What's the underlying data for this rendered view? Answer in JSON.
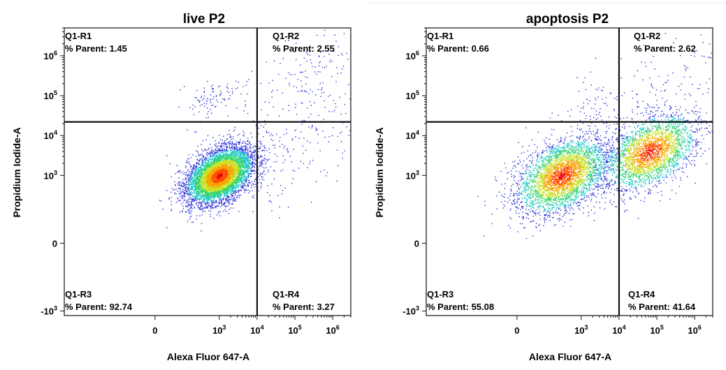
{
  "chart_data": [
    {
      "type": "scatter",
      "title": "live P2",
      "xlabel": "Alexa Fluor 647-A",
      "ylabel": "Propidium Iodide-A",
      "x_scale": "biexponential",
      "y_scale": "biexponential",
      "xlim": [
        -5000,
        3000000
      ],
      "ylim": [
        -1300,
        5000000
      ],
      "x_ticks": [
        {
          "value": 0,
          "label": "0"
        },
        {
          "value": 1000,
          "label": "10",
          "exp": "3"
        },
        {
          "value": 10000,
          "label": "10",
          "exp": "4"
        },
        {
          "value": 100000,
          "label": "10",
          "exp": "5"
        },
        {
          "value": 1000000,
          "label": "10",
          "exp": "6"
        }
      ],
      "y_ticks": [
        {
          "value": -1000,
          "label": "-10",
          "exp": "3"
        },
        {
          "value": 0,
          "label": "0"
        },
        {
          "value": 1000,
          "label": "10",
          "exp": "3"
        },
        {
          "value": 10000,
          "label": "10",
          "exp": "4"
        },
        {
          "value": 100000,
          "label": "10",
          "exp": "5"
        },
        {
          "value": 1000000,
          "label": "10",
          "exp": "6"
        }
      ],
      "gate": {
        "x": 10000,
        "y": 22000
      },
      "quadrants": [
        {
          "name": "Q1-R1",
          "stat": "% Parent: 1.45",
          "position": "top-left"
        },
        {
          "name": "Q1-R2",
          "stat": "% Parent: 2.55",
          "position": "top-right"
        },
        {
          "name": "Q1-R3",
          "stat": "% Parent: 92.74",
          "position": "bottom-left"
        },
        {
          "name": "Q1-R4",
          "stat": "% Parent: 3.27",
          "position": "bottom-right"
        }
      ],
      "populations": [
        {
          "x": 1000,
          "y": 1000,
          "spread": 0.16,
          "weight": 0.9274,
          "dense": true
        },
        {
          "x": 900,
          "y": 95000,
          "spread": 0.12,
          "weight": 0.0145
        },
        {
          "x": 50000,
          "y": 5000,
          "spread": 0.38,
          "weight": 0.0327
        },
        {
          "x": 300000,
          "y": 300000,
          "spread": 0.3,
          "weight": 0.0255
        }
      ]
    },
    {
      "type": "scatter",
      "title": "apoptosis P2",
      "xlabel": "Alexa Fluor 647-A",
      "ylabel": "Propidium Iodide-A",
      "x_scale": "biexponential",
      "y_scale": "biexponential",
      "xlim": [
        -5000,
        3000000
      ],
      "ylim": [
        -1300,
        5000000
      ],
      "x_ticks": [
        {
          "value": 0,
          "label": "0"
        },
        {
          "value": 1000,
          "label": "10",
          "exp": "3"
        },
        {
          "value": 10000,
          "label": "10",
          "exp": "4"
        },
        {
          "value": 100000,
          "label": "10",
          "exp": "5"
        },
        {
          "value": 1000000,
          "label": "10",
          "exp": "6"
        }
      ],
      "y_ticks": [
        {
          "value": -1000,
          "label": "-10",
          "exp": "3"
        },
        {
          "value": 0,
          "label": "0"
        },
        {
          "value": 1000,
          "label": "10",
          "exp": "3"
        },
        {
          "value": 10000,
          "label": "10",
          "exp": "4"
        },
        {
          "value": 100000,
          "label": "10",
          "exp": "5"
        },
        {
          "value": 1000000,
          "label": "10",
          "exp": "6"
        }
      ],
      "gate": {
        "x": 10000,
        "y": 22000
      },
      "quadrants": [
        {
          "name": "Q1-R1",
          "stat": "% Parent: 0.66",
          "position": "top-left"
        },
        {
          "name": "Q1-R2",
          "stat": "% Parent: 2.62",
          "position": "top-right"
        },
        {
          "name": "Q1-R3",
          "stat": "% Parent: 55.08",
          "position": "bottom-left"
        },
        {
          "name": "Q1-R4",
          "stat": "% Parent: 41.64",
          "position": "bottom-right"
        }
      ],
      "populations": [
        {
          "x": 700,
          "y": 1000,
          "spread": 0.22,
          "weight": 0.5508,
          "dense": true
        },
        {
          "x": 65000,
          "y": 4000,
          "spread": 0.22,
          "weight": 0.4164,
          "dense": true
        },
        {
          "x": 2500,
          "y": 70000,
          "spread": 0.2,
          "weight": 0.0066
        },
        {
          "x": 250000,
          "y": 120000,
          "spread": 0.4,
          "weight": 0.0262
        }
      ]
    }
  ],
  "colors": {
    "sparse": "#2a2fd6",
    "density_ramp": [
      "#2a2fd6",
      "#1c8fe0",
      "#19c9c2",
      "#2ed36b",
      "#c8e021",
      "#f7a500",
      "#ff4b00",
      "#e80000"
    ]
  }
}
